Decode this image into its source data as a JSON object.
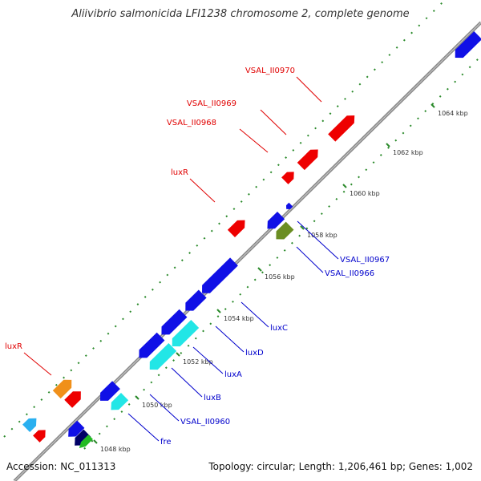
{
  "title": "Aliivibrio salmonicida LFI1238 chromosome 2, complete genome",
  "footer": {
    "accession": "Accession: NC_011313",
    "topology": "Topology: circular; Length: 1,206,461 bp; Genes: 1,002"
  },
  "colors": {
    "strand_line": "#8a8a8a",
    "ruler_dots": "#2a8a2a",
    "label_red": "#e00000",
    "label_blue": "#0000cc",
    "gene_red": "#ee0000",
    "gene_blue": "#1010e6",
    "gene_cyan": "#22e6e6",
    "gene_orange": "#f0901a",
    "gene_olive": "#6b8e23",
    "gene_lightblue": "#2ab0f0",
    "gene_navy": "#000066",
    "gene_green": "#22bb22"
  },
  "ruler_ticks": [
    {
      "label": "1048 kbp"
    },
    {
      "label": "1050 kbp"
    },
    {
      "label": "1052 kbp"
    },
    {
      "label": "1054 kbp"
    },
    {
      "label": "1056 kbp"
    },
    {
      "label": "1058 kbp"
    },
    {
      "label": "1060 kbp"
    },
    {
      "label": "1062 kbp"
    },
    {
      "label": "1064 kbp"
    }
  ],
  "upper_labels": [
    {
      "text": "VSAL_II0970",
      "color": "red"
    },
    {
      "text": "VSAL_II0969",
      "color": "red"
    },
    {
      "text": "VSAL_II0968",
      "color": "red"
    },
    {
      "text": "luxR",
      "color": "red"
    },
    {
      "text": "luxR",
      "color": "red"
    }
  ],
  "lower_labels": [
    {
      "text": "VSAL_II0967",
      "color": "blue"
    },
    {
      "text": "VSAL_II0966",
      "color": "blue"
    },
    {
      "text": "luxC",
      "color": "blue"
    },
    {
      "text": "luxD",
      "color": "blue"
    },
    {
      "text": "luxA",
      "color": "blue"
    },
    {
      "text": "luxB",
      "color": "blue"
    },
    {
      "text": "VSAL_II0960",
      "color": "blue"
    },
    {
      "text": "fre",
      "color": "blue"
    }
  ]
}
